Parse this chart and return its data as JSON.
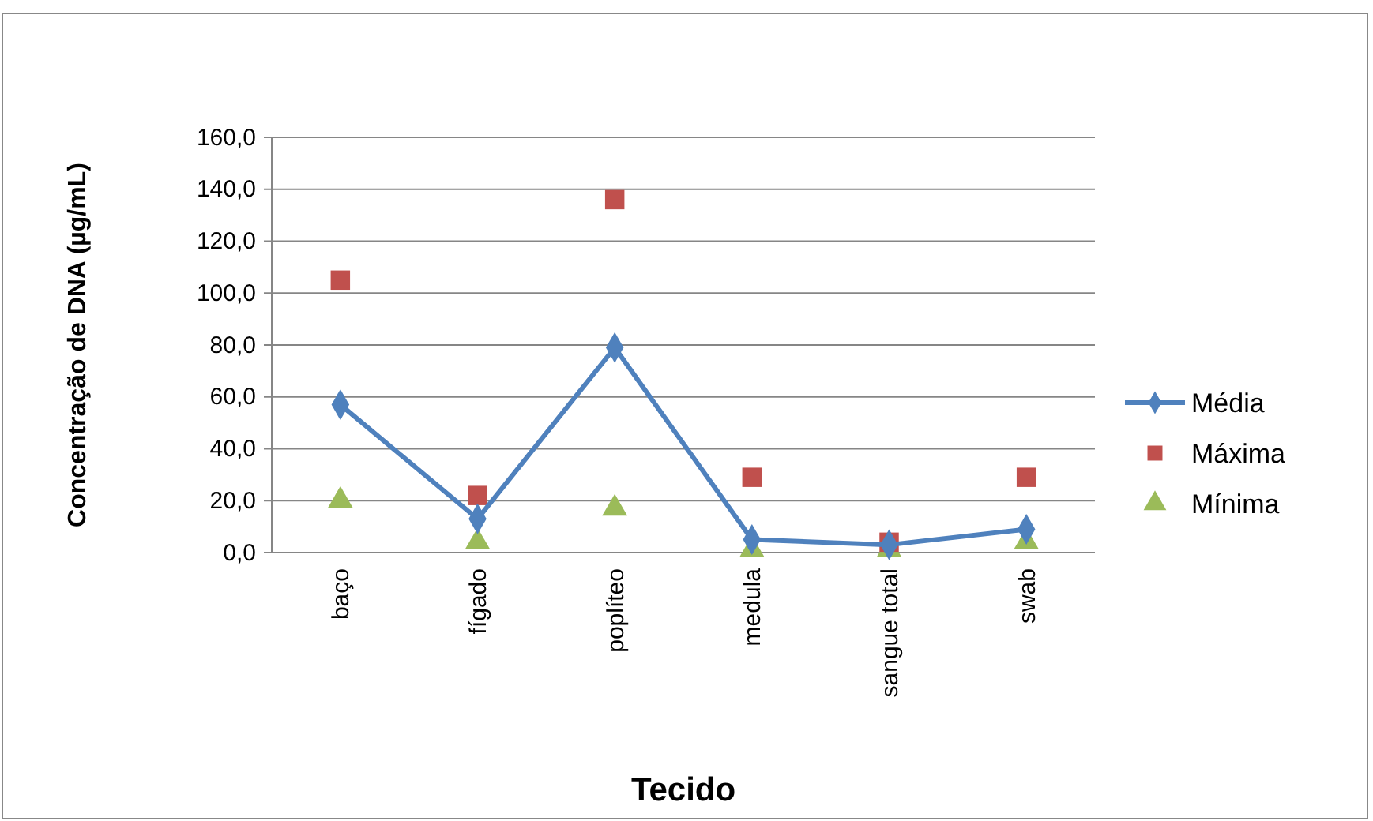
{
  "chart_data": {
    "type": "line",
    "xlabel": "Tecido",
    "ylabel": "Concentração de DNA (µg/mL)",
    "categories": [
      "baço",
      "fígado",
      "poplíteo",
      "medula",
      "sangue total",
      "swab"
    ],
    "series": [
      {
        "name": "Média",
        "color": "#4f81bd",
        "marker": "diamond",
        "values": [
          57,
          13,
          79,
          5,
          3,
          9
        ]
      },
      {
        "name": "Máxima",
        "type": "scatter",
        "color": "#c0504d",
        "marker": "square",
        "values": [
          105,
          22,
          136,
          29,
          4,
          29
        ]
      },
      {
        "name": "Mínima",
        "type": "scatter",
        "color": "#9bbb59",
        "marker": "triangle",
        "values": [
          20,
          4,
          17,
          1,
          1,
          4
        ]
      }
    ],
    "ylim": [
      0,
      160
    ],
    "yticks": [
      {
        "value": 0,
        "label": "0,0"
      },
      {
        "value": 20,
        "label": "20,0"
      },
      {
        "value": 40,
        "label": "40,0"
      },
      {
        "value": 60,
        "label": "60,0"
      },
      {
        "value": 80,
        "label": "80,0"
      },
      {
        "value": 100,
        "label": "100,0"
      },
      {
        "value": 120,
        "label": "120,0"
      },
      {
        "value": 140,
        "label": "140,0"
      },
      {
        "value": 160,
        "label": "160,0"
      }
    ],
    "grid": "y",
    "legend": "right"
  }
}
